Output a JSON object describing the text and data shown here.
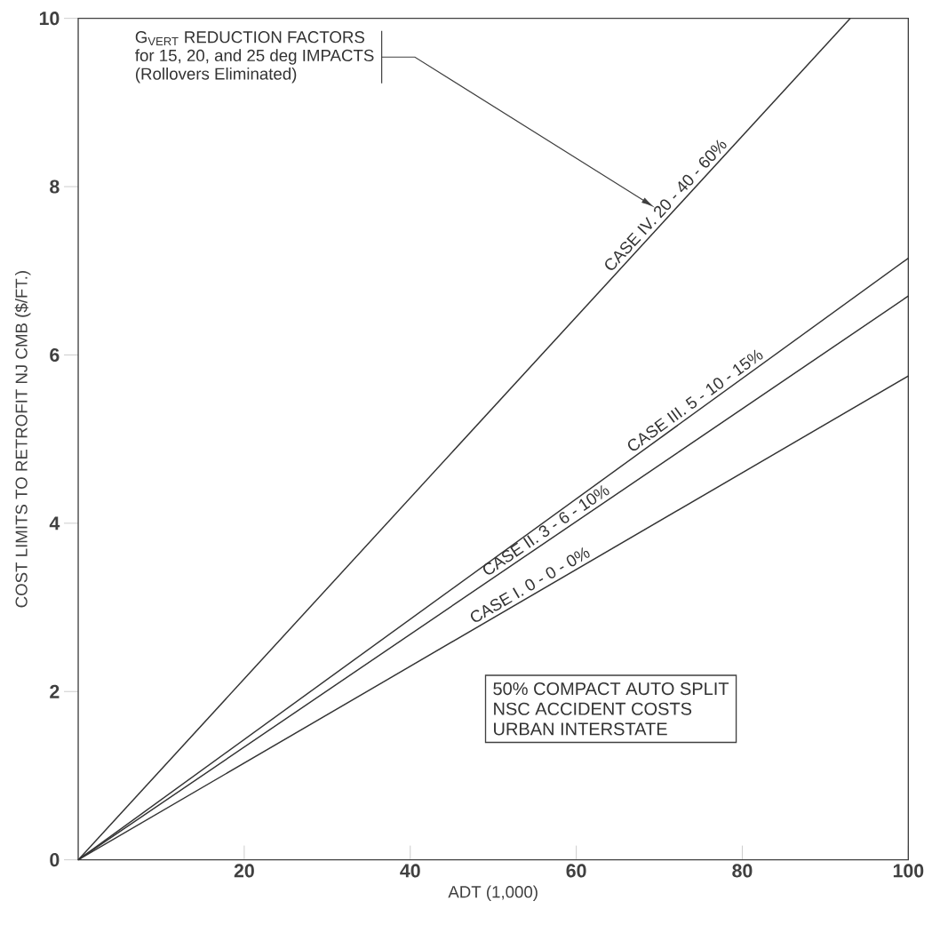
{
  "chart_data": {
    "type": "line",
    "xlabel": "ADT (1,000)",
    "ylabel": "COST LIMITS TO RETROFIT NJ CMB ($/FT.)",
    "xlim": [
      0,
      100
    ],
    "xticks": [
      20,
      40,
      60,
      80,
      100
    ],
    "ylim": [
      0,
      10
    ],
    "yticks": [
      0,
      2,
      4,
      6,
      8,
      10
    ],
    "series": [
      {
        "name": "CASE I.  0 - 0 - 0%",
        "color": "#333333",
        "x": [
          0,
          100
        ],
        "values": [
          0,
          5.75
        ]
      },
      {
        "name": "CASE II.  3 - 6 - 10%",
        "color": "#333333",
        "x": [
          0,
          100
        ],
        "values": [
          0,
          6.7
        ]
      },
      {
        "name": "CASE III.  5 - 10 - 15%",
        "color": "#333333",
        "x": [
          0,
          100
        ],
        "values": [
          0,
          7.15
        ]
      },
      {
        "name": "CASE IV.  20 - 40 - 60%",
        "color": "#333333",
        "x": [
          0,
          93
        ],
        "values": [
          0,
          10
        ]
      }
    ],
    "annotations": [
      "G$_{VERT}$ REDUCTION FACTORS",
      "for 15, 20, and 25 deg IMPACTS",
      "(Rollovers Eliminated)",
      "50% COMPACT AUTO SPLIT",
      "NSC ACCIDENT COSTS",
      "URBAN INTERSTATE"
    ]
  }
}
